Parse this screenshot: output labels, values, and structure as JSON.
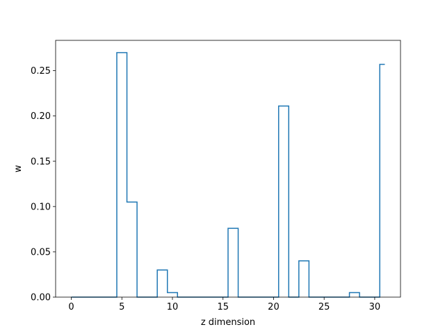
{
  "chart_data": {
    "type": "line",
    "drawstyle": "steps-mid",
    "title": "",
    "xlabel": "z dimension",
    "ylabel": "w",
    "xlim": [
      -1.55,
      32.55
    ],
    "ylim": [
      0,
      0.2835
    ],
    "xticks": [
      0,
      5,
      10,
      15,
      20,
      25,
      30
    ],
    "xtick_labels": [
      "0",
      "5",
      "10",
      "15",
      "20",
      "25",
      "30"
    ],
    "yticks": [
      0,
      0.05,
      0.1,
      0.15,
      0.2,
      0.25
    ],
    "ytick_labels": [
      "0.00",
      "0.05",
      "0.10",
      "0.15",
      "0.20",
      "0.25"
    ],
    "grid": false,
    "series": [
      {
        "color": "#1f77b4",
        "x": [
          0,
          1,
          2,
          3,
          4,
          5,
          6,
          7,
          8,
          9,
          10,
          11,
          12,
          13,
          14,
          15,
          16,
          17,
          18,
          19,
          20,
          21,
          22,
          23,
          24,
          25,
          26,
          27,
          28,
          29,
          30,
          31
        ],
        "y": [
          0,
          0,
          0,
          0,
          0,
          0.27,
          0.105,
          0,
          0,
          0.03,
          0.005,
          0,
          0,
          0,
          0,
          0,
          0.076,
          0,
          0,
          0,
          0,
          0.211,
          0,
          0.04,
          0,
          0,
          0,
          0,
          0.005,
          0,
          0,
          0.257
        ]
      }
    ]
  }
}
